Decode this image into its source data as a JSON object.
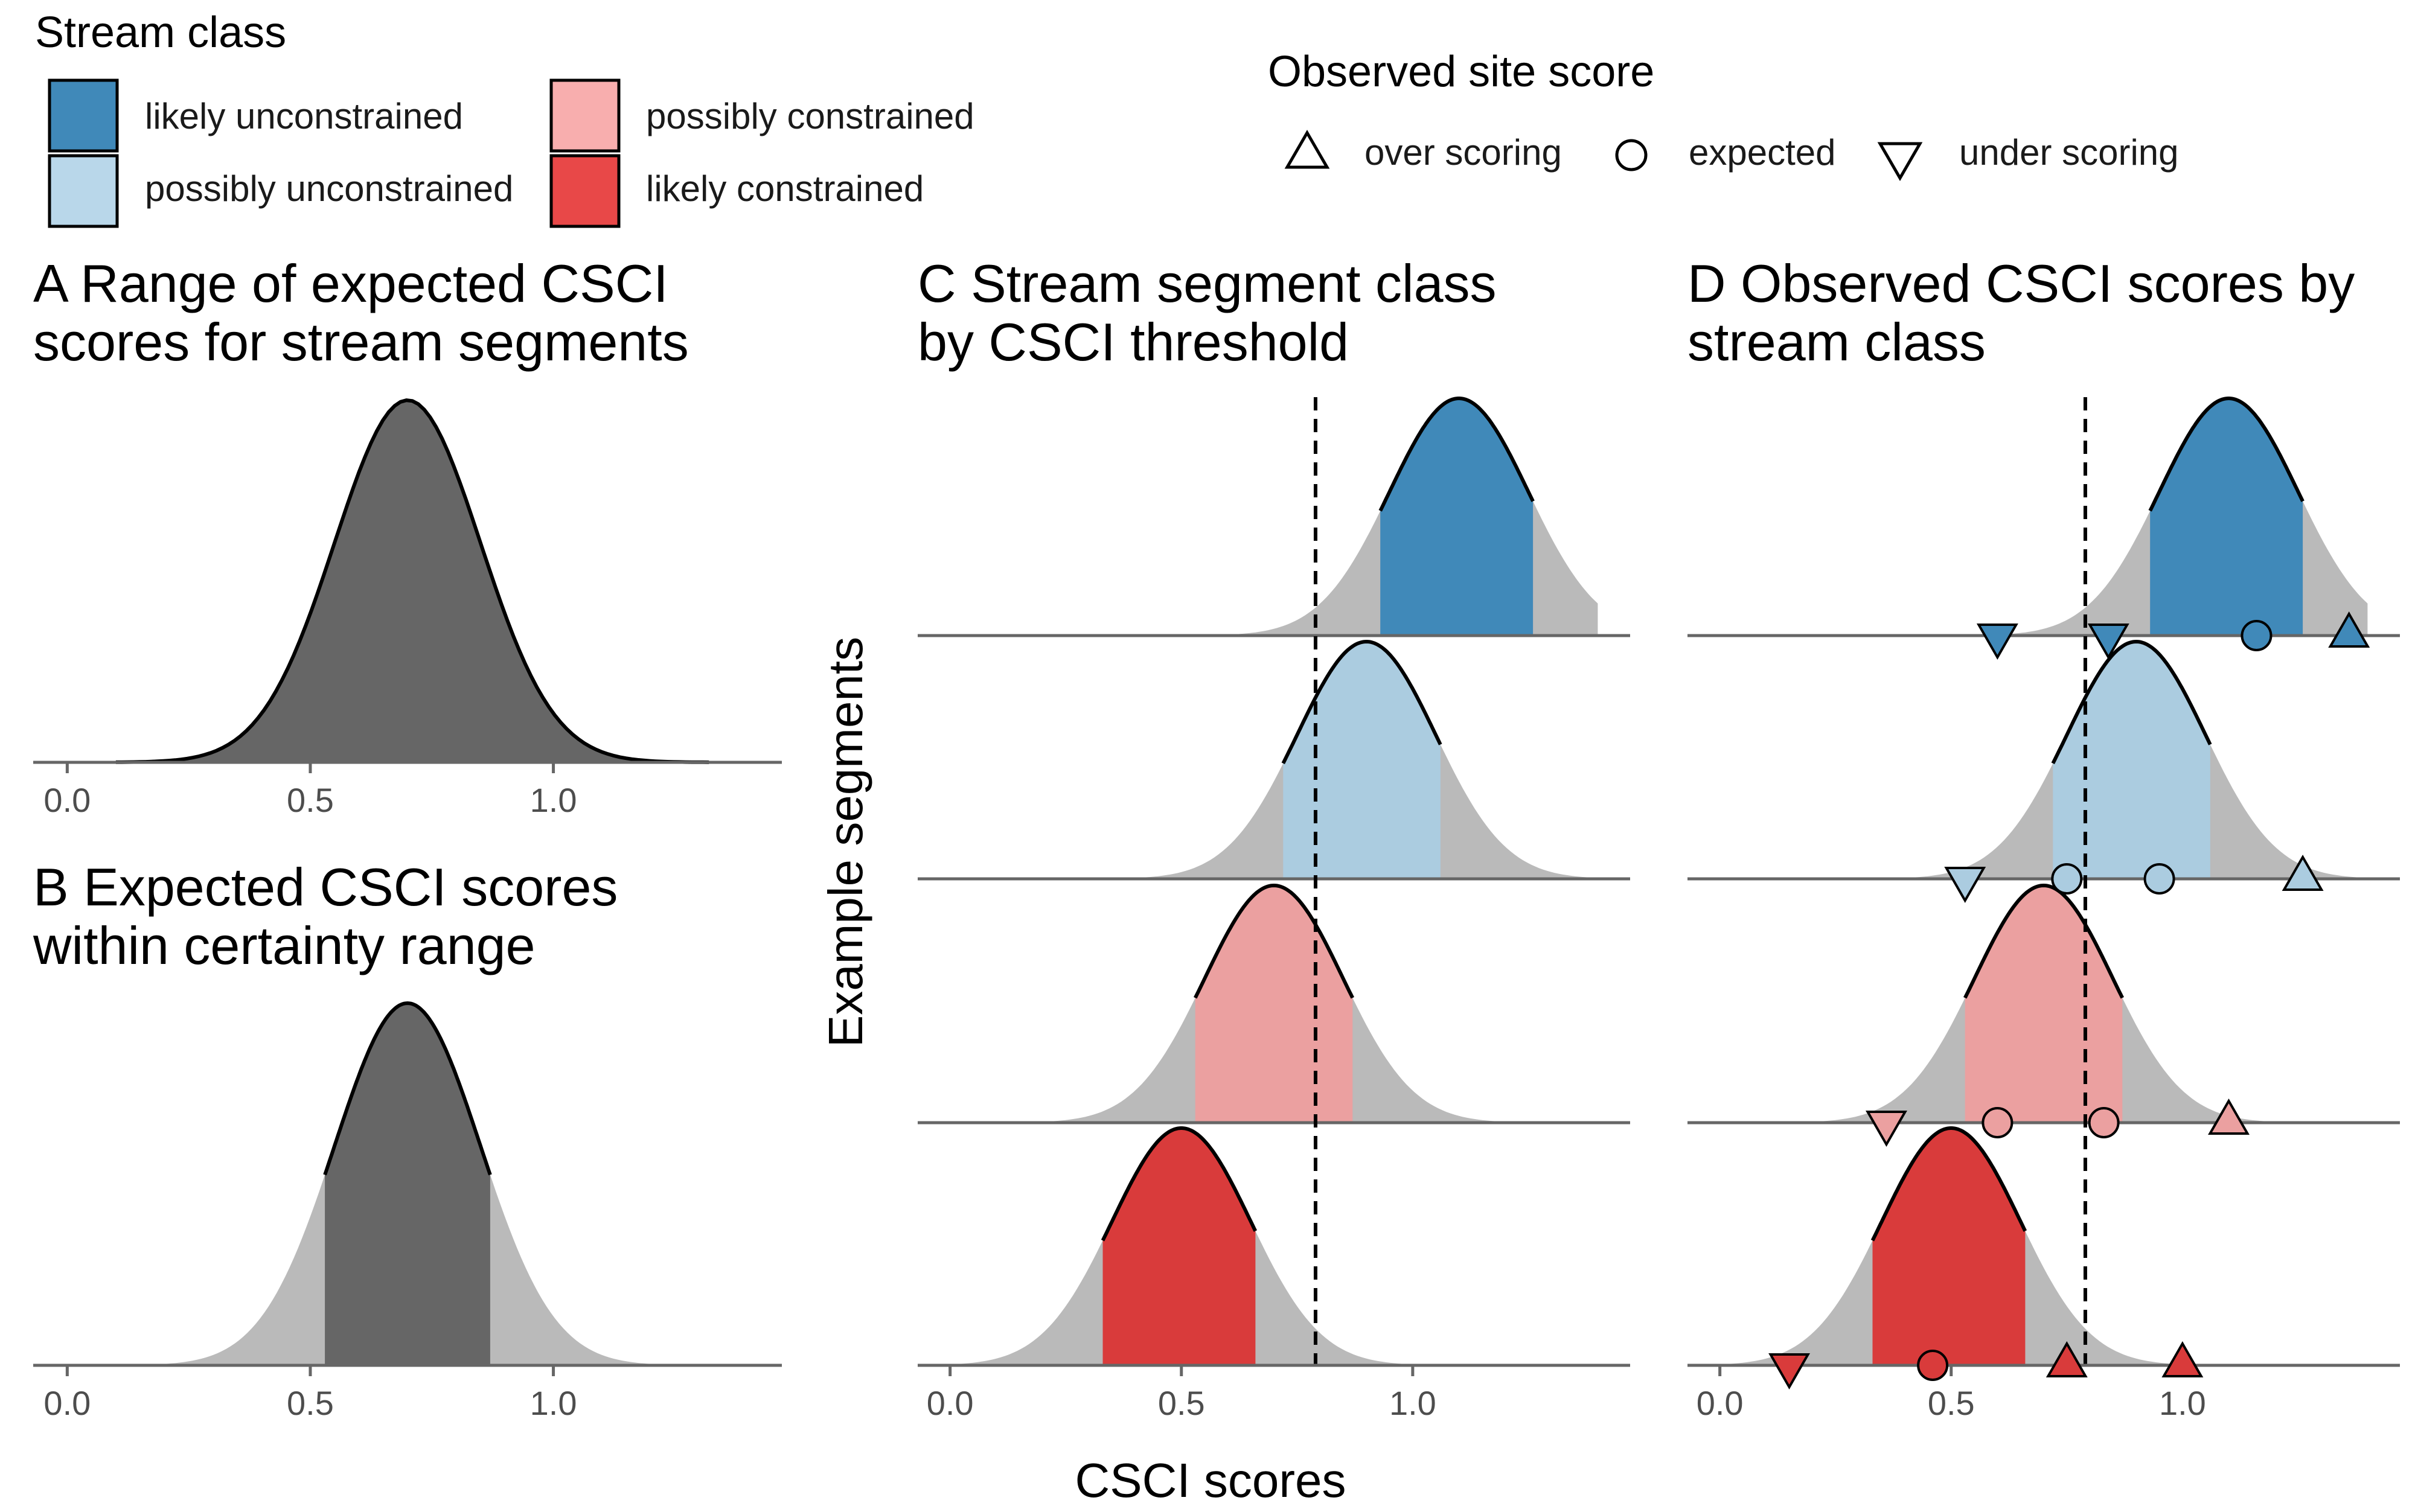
{
  "legend": {
    "stream_class": {
      "title": "Stream class",
      "items": [
        {
          "label": "likely unconstrained",
          "color": "#4089B9"
        },
        {
          "label": "possibly unconstrained",
          "color": "#B9D7EA"
        },
        {
          "label": "possibly constrained",
          "color": "#F8AEAE"
        },
        {
          "label": "likely constrained",
          "color": "#E84848"
        }
      ]
    },
    "observed": {
      "title": "Observed site score",
      "items": [
        {
          "label": "over scoring",
          "shape": "triangle-up"
        },
        {
          "label": "expected",
          "shape": "circle"
        },
        {
          "label": "under scoring",
          "shape": "triangle-down"
        }
      ]
    }
  },
  "axis_label_x": "CSCI scores",
  "axis_label_y": "Example segments",
  "chart_data": [
    {
      "panel": "A",
      "title_lines": [
        "A Range of expected CSCI",
        "scores for stream segments"
      ],
      "type": "area",
      "xlim": [
        -0.07,
        1.47
      ],
      "x_ticks": [
        "0.0",
        "0.5",
        "1.0"
      ],
      "density": {
        "mean": 0.7,
        "sd": 0.15,
        "x_range": [
          0.1,
          1.32
        ]
      },
      "fill_color": "#666666"
    },
    {
      "panel": "B",
      "title_lines": [
        "B Expected CSCI scores",
        "within certainty range"
      ],
      "type": "area",
      "xlim": [
        -0.07,
        1.47
      ],
      "x_ticks": [
        "0.0",
        "0.5",
        "1.0"
      ],
      "density": {
        "mean": 0.7,
        "sd": 0.15,
        "x_range": [
          0.18,
          1.22
        ]
      },
      "certainty_range": [
        0.53,
        0.87
      ],
      "fill_color": "#666666"
    },
    {
      "panel": "C",
      "title_lines": [
        "C Stream segment class",
        "by CSCI threshold"
      ],
      "type": "area",
      "xlim": [
        -0.07,
        1.47
      ],
      "x_ticks": [
        "0.0",
        "0.5",
        "1.0"
      ],
      "threshold": 0.79,
      "segments": [
        {
          "class": "likely unconstrained",
          "mean": 1.1,
          "ci": [
            0.93,
            1.26
          ],
          "x_range": [
            0.6,
            1.4
          ],
          "color": "#4089B9"
        },
        {
          "class": "possibly unconstrained",
          "mean": 0.9,
          "ci": [
            0.72,
            1.06
          ],
          "x_range": [
            0.38,
            1.42
          ],
          "color": "#ABCCE0"
        },
        {
          "class": "possibly constrained",
          "mean": 0.7,
          "ci": [
            0.53,
            0.87
          ],
          "x_range": [
            0.18,
            1.22
          ],
          "color": "#EBA0A0"
        },
        {
          "class": "likely constrained",
          "mean": 0.5,
          "ci": [
            0.33,
            0.66
          ],
          "x_range": [
            -0.02,
            1.02
          ],
          "color": "#D93B3B"
        }
      ]
    },
    {
      "panel": "D",
      "title_lines": [
        "D Observed CSCI scores by",
        "stream class"
      ],
      "type": "scatter",
      "xlim": [
        -0.07,
        1.47
      ],
      "x_ticks": [
        "0.0",
        "0.5",
        "1.0"
      ],
      "threshold": 0.79,
      "segments": [
        {
          "class": "likely unconstrained",
          "mean": 1.1,
          "ci": [
            0.93,
            1.26
          ],
          "x_range": [
            0.6,
            1.4
          ],
          "color": "#4089B9",
          "points": [
            {
              "x": 0.6,
              "score": "under scoring"
            },
            {
              "x": 0.84,
              "score": "under scoring"
            },
            {
              "x": 1.16,
              "score": "expected"
            },
            {
              "x": 1.36,
              "score": "over scoring"
            }
          ]
        },
        {
          "class": "possibly unconstrained",
          "mean": 0.9,
          "ci": [
            0.72,
            1.06
          ],
          "x_range": [
            0.38,
            1.42
          ],
          "color": "#ABCCE0",
          "points": [
            {
              "x": 0.53,
              "score": "under scoring"
            },
            {
              "x": 0.75,
              "score": "expected"
            },
            {
              "x": 0.95,
              "score": "expected"
            },
            {
              "x": 1.26,
              "score": "over scoring"
            }
          ]
        },
        {
          "class": "possibly constrained",
          "mean": 0.7,
          "ci": [
            0.53,
            0.87
          ],
          "x_range": [
            0.18,
            1.22
          ],
          "color": "#EBA0A0",
          "points": [
            {
              "x": 0.36,
              "score": "under scoring"
            },
            {
              "x": 0.6,
              "score": "expected"
            },
            {
              "x": 0.83,
              "score": "expected"
            },
            {
              "x": 1.1,
              "score": "over scoring"
            }
          ]
        },
        {
          "class": "likely constrained",
          "mean": 0.5,
          "ci": [
            0.33,
            0.66
          ],
          "x_range": [
            -0.02,
            1.02
          ],
          "color": "#D93B3B",
          "points": [
            {
              "x": 0.15,
              "score": "under scoring"
            },
            {
              "x": 0.46,
              "score": "expected"
            },
            {
              "x": 0.75,
              "score": "over scoring"
            },
            {
              "x": 1.0,
              "score": "over scoring"
            }
          ]
        }
      ]
    }
  ]
}
